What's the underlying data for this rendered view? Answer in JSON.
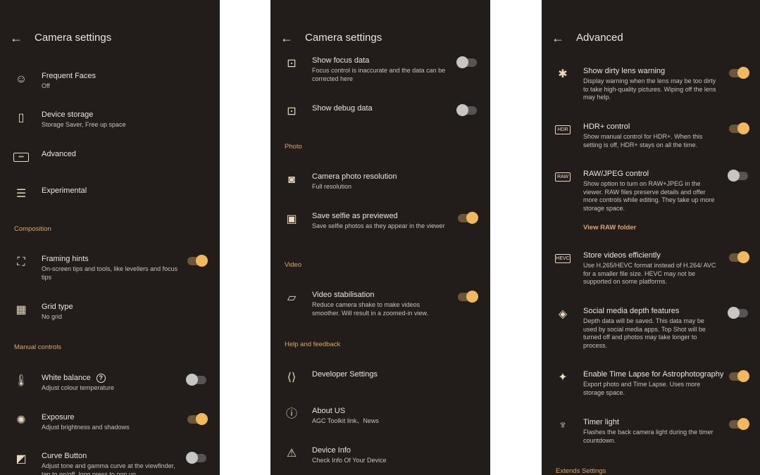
{
  "accent": "#f2b860",
  "panels": [
    {
      "title": "Camera settings",
      "back_icon": "arrow-left-icon",
      "items": [
        {
          "kind": "row",
          "icon": "face-icon",
          "title": "Frequent Faces",
          "subtitle": "Off"
        },
        {
          "kind": "row",
          "icon": "sd-card-icon",
          "title": "Device storage",
          "subtitle": "Storage Saver, Free up space"
        },
        {
          "kind": "row",
          "icon": "more-horiz-icon",
          "title": "Advanced"
        },
        {
          "kind": "row",
          "icon": "tune-icon",
          "title": "Experimental"
        },
        {
          "kind": "section",
          "title": "Composition"
        },
        {
          "kind": "row",
          "icon": "framing-icon",
          "title": "Framing hints",
          "subtitle": "On-screen tips and tools, like levellers and focus tips",
          "toggle": true
        },
        {
          "kind": "row",
          "icon": "grid-icon",
          "title": "Grid type",
          "subtitle": "No grid"
        },
        {
          "kind": "section",
          "title": "Manual controls"
        },
        {
          "kind": "row",
          "icon": "thermometer-icon",
          "title": "White balance",
          "subtitle": "Adjust colour temperature",
          "toggle": false,
          "help": "?"
        },
        {
          "kind": "row",
          "icon": "exposure-icon",
          "title": "Exposure",
          "subtitle": "Adjust brightness and shadows",
          "toggle": true
        },
        {
          "kind": "row",
          "icon": "curve-icon",
          "title": "Curve Button",
          "subtitle": "Adjust tone and gamma curve at the viewfinder, tap to on/off, long press to pop up",
          "toggle": false
        }
      ]
    },
    {
      "title": "Camera settings",
      "back_icon": "arrow-left-icon",
      "items": [
        {
          "kind": "row",
          "icon": "focus-icon",
          "title": "Show focus data",
          "subtitle": "Focus control is inaccurate and the data can be corrected here",
          "toggle": false
        },
        {
          "kind": "row",
          "icon": "focus-icon",
          "title": "Show debug data",
          "toggle": false
        },
        {
          "kind": "section",
          "title": "Photo"
        },
        {
          "kind": "row",
          "icon": "camera-icon",
          "title": "Camera photo resolution",
          "subtitle": "Full resolution"
        },
        {
          "kind": "row",
          "icon": "selfie-icon",
          "title": "Save selfie as previewed",
          "subtitle": "Save selfie photos as they appear in the viewer",
          "toggle": true
        },
        {
          "kind": "section",
          "title": "Video"
        },
        {
          "kind": "row",
          "icon": "video-stabilisation-icon",
          "title": "Video stabilisation",
          "subtitle": "Reduce camera shake to make videos smoother. Will result in a zoomed-in view.",
          "toggle": true
        },
        {
          "kind": "section",
          "title": "Help and feedback"
        },
        {
          "kind": "row",
          "icon": "developer-icon",
          "title": "Developer Settings"
        },
        {
          "kind": "row",
          "icon": "info-icon",
          "title": "About US",
          "subtitle": "AGC Toolkit link、News"
        },
        {
          "kind": "row",
          "icon": "feedback-icon",
          "title": "Device Info",
          "subtitle": "Check Info Of Your Device"
        }
      ]
    },
    {
      "title": "Advanced",
      "back_icon": "arrow-left-icon",
      "items": [
        {
          "kind": "row",
          "icon": "dirty-lens-icon",
          "title": "Show dirty lens warning",
          "subtitle": "Display warning when the lens may be too dirty to take high-quality pictures. Wiping off the lens may help.",
          "toggle": true
        },
        {
          "kind": "row",
          "icon": "hdr-plus-icon",
          "title": "HDR+ control",
          "subtitle": "Show manual control for HDR+. When this setting is off, HDR+ stays on all the time.",
          "toggle": true
        },
        {
          "kind": "row",
          "icon": "raw-icon",
          "title": "RAW/JPEG control",
          "subtitle": "Show option to turn on RAW+JPEG in the viewer. RAW files preserve details and offer more controls while editing. They take up more storage space.",
          "toggle": false
        },
        {
          "kind": "link",
          "title": "View RAW folder"
        },
        {
          "kind": "row",
          "icon": "hevc-icon",
          "title": "Store videos efficiently",
          "subtitle": "Use H.265/HEVC format instead of H.264/ AVC for a smaller file size. HEVC may not be supported on some platforms.",
          "toggle": true
        },
        {
          "kind": "row",
          "icon": "layers-icon",
          "title": "Social media depth features",
          "subtitle": "Depth data will be saved. This data may be used by social media apps. Top Shot will be turned off and photos may take longer to process.",
          "toggle": false
        },
        {
          "kind": "row",
          "icon": "sparkle-icon",
          "title": "Enable Time Lapse for Astrophotography",
          "subtitle": "Export photo and Time Lapse. Uses more storage space.",
          "toggle": true
        },
        {
          "kind": "row",
          "icon": "flashlight-icon",
          "title": "Timer light",
          "subtitle": "Flashes the back camera light during the timer countdown.",
          "toggle": true
        },
        {
          "kind": "section",
          "title": "Extends Settings"
        }
      ]
    }
  ]
}
